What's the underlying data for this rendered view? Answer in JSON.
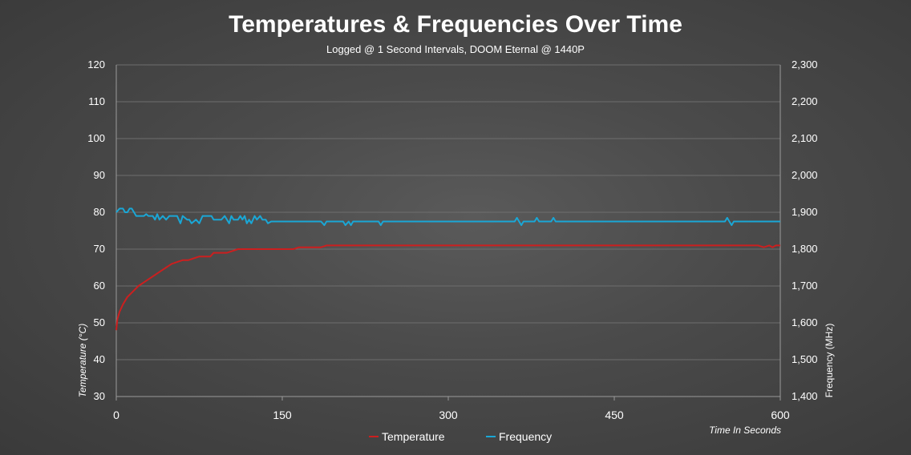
{
  "chart_data": {
    "type": "line",
    "title": "Temperatures & Frequencies Over Time",
    "subtitle": "Logged @ 1 Second Intervals, DOOM Eternal @ 1440P",
    "xlabel": "Time In Seconds",
    "ylabel_left": "Temperature (°C)",
    "ylabel_right": "Frequency  (MHz)",
    "xlim": [
      0,
      600
    ],
    "ylim_left": [
      30,
      120
    ],
    "ylim_right": [
      1400,
      2300
    ],
    "x_ticks": [
      "0",
      "150",
      "300",
      "450",
      "600"
    ],
    "y_ticks_left": [
      "30",
      "40",
      "50",
      "60",
      "70",
      "80",
      "90",
      "100",
      "110",
      "120"
    ],
    "y_ticks_right": [
      "1,400",
      "1,500",
      "1,600",
      "1,700",
      "1,800",
      "1,900",
      "2,000",
      "2,100",
      "2,200",
      "2,300"
    ],
    "grid": "horizontal",
    "legend_position": "bottom",
    "series": [
      {
        "name": "Temperature",
        "axis": "left",
        "color": "#cc1f1f",
        "points": [
          [
            0,
            48
          ],
          [
            1,
            51
          ],
          [
            3,
            53
          ],
          [
            6,
            55
          ],
          [
            10,
            57
          ],
          [
            15,
            58.5
          ],
          [
            20,
            60
          ],
          [
            25,
            61
          ],
          [
            30,
            62
          ],
          [
            35,
            63
          ],
          [
            40,
            64
          ],
          [
            45,
            65
          ],
          [
            50,
            66
          ],
          [
            55,
            66.5
          ],
          [
            60,
            67
          ],
          [
            65,
            67
          ],
          [
            70,
            67.5
          ],
          [
            75,
            68
          ],
          [
            80,
            68
          ],
          [
            85,
            68
          ],
          [
            88,
            69
          ],
          [
            95,
            69
          ],
          [
            100,
            69
          ],
          [
            105,
            69.5
          ],
          [
            110,
            70
          ],
          [
            120,
            70
          ],
          [
            130,
            70
          ],
          [
            140,
            70
          ],
          [
            150,
            70
          ],
          [
            160,
            70
          ],
          [
            165,
            70.5
          ],
          [
            175,
            70.5
          ],
          [
            180,
            70.5
          ],
          [
            185,
            70.5
          ],
          [
            190,
            71
          ],
          [
            200,
            71
          ],
          [
            250,
            71
          ],
          [
            300,
            71
          ],
          [
            350,
            71
          ],
          [
            400,
            71
          ],
          [
            450,
            71
          ],
          [
            500,
            71
          ],
          [
            550,
            71
          ],
          [
            580,
            71
          ],
          [
            585,
            70.5
          ],
          [
            590,
            71
          ],
          [
            593,
            70.5
          ],
          [
            596,
            71
          ],
          [
            600,
            71
          ]
        ]
      },
      {
        "name": "Frequency",
        "axis": "right",
        "color": "#1aa7d6",
        "points": [
          [
            0,
            1900
          ],
          [
            3,
            1910
          ],
          [
            6,
            1910
          ],
          [
            8,
            1900
          ],
          [
            10,
            1900
          ],
          [
            12,
            1910
          ],
          [
            14,
            1910
          ],
          [
            16,
            1900
          ],
          [
            18,
            1890
          ],
          [
            25,
            1890
          ],
          [
            27,
            1895
          ],
          [
            29,
            1890
          ],
          [
            33,
            1890
          ],
          [
            35,
            1880
          ],
          [
            37,
            1895
          ],
          [
            39,
            1880
          ],
          [
            42,
            1890
          ],
          [
            45,
            1880
          ],
          [
            48,
            1890
          ],
          [
            55,
            1890
          ],
          [
            58,
            1870
          ],
          [
            60,
            1890
          ],
          [
            64,
            1880
          ],
          [
            66,
            1880
          ],
          [
            68,
            1870
          ],
          [
            72,
            1880
          ],
          [
            75,
            1870
          ],
          [
            78,
            1890
          ],
          [
            86,
            1890
          ],
          [
            88,
            1880
          ],
          [
            95,
            1880
          ],
          [
            98,
            1890
          ],
          [
            100,
            1880
          ],
          [
            102,
            1870
          ],
          [
            104,
            1890
          ],
          [
            106,
            1880
          ],
          [
            110,
            1880
          ],
          [
            112,
            1890
          ],
          [
            114,
            1880
          ],
          [
            116,
            1890
          ],
          [
            118,
            1870
          ],
          [
            120,
            1880
          ],
          [
            122,
            1870
          ],
          [
            125,
            1890
          ],
          [
            127,
            1880
          ],
          [
            130,
            1890
          ],
          [
            132,
            1880
          ],
          [
            135,
            1880
          ],
          [
            137,
            1870
          ],
          [
            140,
            1875
          ],
          [
            185,
            1875
          ],
          [
            188,
            1865
          ],
          [
            190,
            1875
          ],
          [
            205,
            1875
          ],
          [
            207,
            1865
          ],
          [
            210,
            1875
          ],
          [
            212,
            1865
          ],
          [
            214,
            1875
          ],
          [
            237,
            1875
          ],
          [
            239,
            1865
          ],
          [
            241,
            1875
          ],
          [
            360,
            1875
          ],
          [
            362,
            1885
          ],
          [
            364,
            1875
          ],
          [
            366,
            1865
          ],
          [
            368,
            1875
          ],
          [
            378,
            1875
          ],
          [
            380,
            1885
          ],
          [
            382,
            1875
          ],
          [
            393,
            1875
          ],
          [
            395,
            1885
          ],
          [
            397,
            1875
          ],
          [
            550,
            1875
          ],
          [
            552,
            1885
          ],
          [
            554,
            1875
          ],
          [
            556,
            1865
          ],
          [
            558,
            1875
          ],
          [
            600,
            1875
          ]
        ]
      }
    ]
  }
}
